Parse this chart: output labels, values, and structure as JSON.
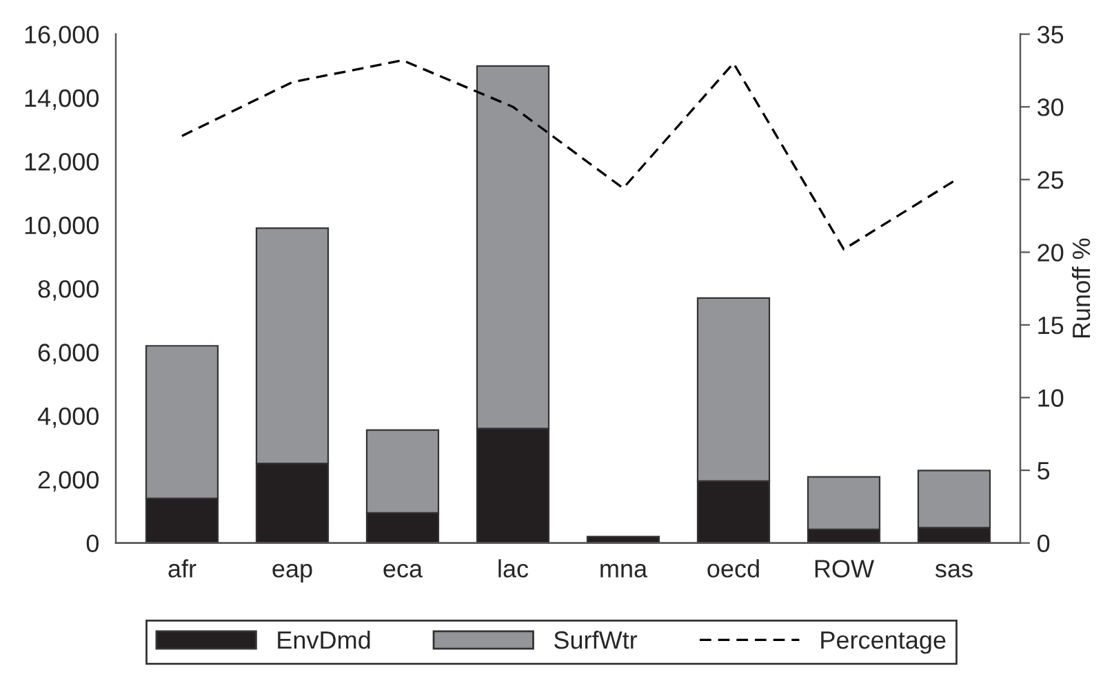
{
  "chart_data": {
    "type": "bar",
    "stacked": true,
    "categories": [
      "afr",
      "eap",
      "eca",
      "lac",
      "mna",
      "oecd",
      "ROW",
      "sas"
    ],
    "series": [
      {
        "name": "EnvDmd",
        "color": "#231f20",
        "values": [
          1400,
          2500,
          950,
          3600,
          200,
          1950,
          430,
          480
        ]
      },
      {
        "name": "SurfWtr",
        "color": "#939598",
        "values": [
          4800,
          7400,
          2600,
          11400,
          null,
          5750,
          1650,
          1800
        ]
      },
      {
        "name": "Percentage",
        "type": "line",
        "axis": "y2",
        "color": "#000000",
        "line_style": "dashed",
        "marker": "none",
        "values": [
          28.0,
          31.7,
          33.2,
          30.0,
          24.4,
          33.0,
          20.2,
          24.9
        ]
      }
    ],
    "ylim": [
      0,
      16000
    ],
    "yticks": [
      {
        "value": 0,
        "label": "0"
      },
      {
        "value": 2000,
        "label": "2,000"
      },
      {
        "value": 4000,
        "label": "4,000"
      },
      {
        "value": 6000,
        "label": "6,000"
      },
      {
        "value": 8000,
        "label": "8,000"
      },
      {
        "value": 10000,
        "label": "10,000"
      },
      {
        "value": 12000,
        "label": "12,000"
      },
      {
        "value": 14000,
        "label": "14,000"
      },
      {
        "value": 16000,
        "label": "16,000"
      }
    ],
    "y2lim": [
      0,
      35
    ],
    "y2ticks": [
      0,
      5,
      10,
      15,
      20,
      25,
      30,
      35
    ],
    "y2label": "Runoff %",
    "legend": "bottom",
    "grid": false
  }
}
